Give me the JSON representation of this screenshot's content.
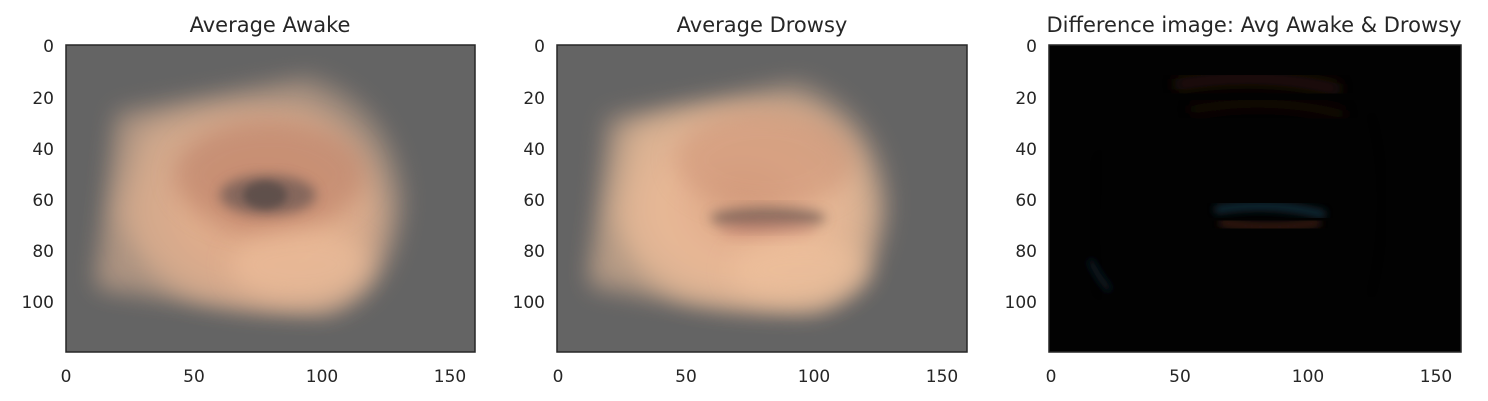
{
  "figure": {
    "panels": [
      {
        "title": "Average Awake",
        "x_ticks": [
          "0",
          "50",
          "100",
          "150"
        ],
        "y_ticks": [
          "0",
          "20",
          "40",
          "60",
          "80",
          "100"
        ],
        "image_description": "blurred average of awake eye crops on gray background"
      },
      {
        "title": "Average Drowsy",
        "x_ticks": [
          "0",
          "50",
          "100",
          "150"
        ],
        "y_ticks": [
          "0",
          "20",
          "40",
          "60",
          "80",
          "100"
        ],
        "image_description": "blurred average of drowsy eye crops on gray background"
      },
      {
        "title": "Difference image: Avg Awake & Drowsy",
        "x_ticks": [
          "0",
          "50",
          "100",
          "150"
        ],
        "y_ticks": [
          "0",
          "20",
          "40",
          "60",
          "80",
          "100"
        ],
        "image_description": "mostly black difference image with faint eyelid outline"
      }
    ]
  },
  "colors": {
    "gray_background": "#646464",
    "skin": "#e2b08f",
    "difference_background": "#020202"
  }
}
